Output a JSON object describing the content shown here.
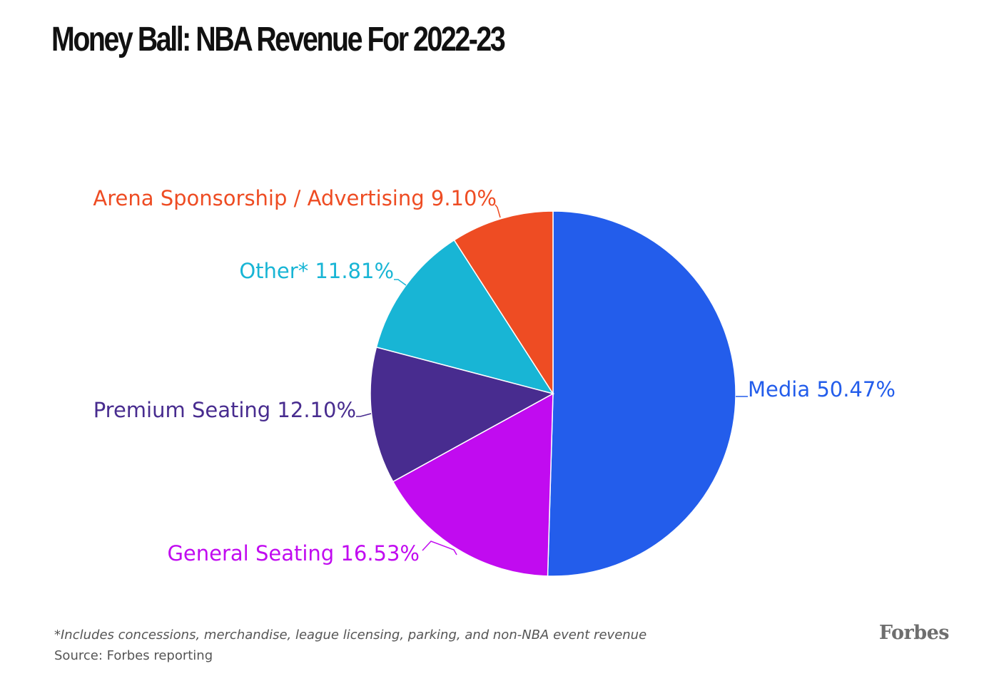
{
  "title": "Money Ball: NBA Revenue For 2022-23",
  "footnote": "*Includes concessions, merchandise, league licensing, parking, and non-NBA event revenue",
  "source": "Source: Forbes reporting",
  "brand": "Forbes",
  "chart_data": {
    "type": "pie",
    "title": "Money Ball: NBA Revenue For 2022-23",
    "unit": "%",
    "slices": [
      {
        "label": "Media 50.47%",
        "name": "Media",
        "value": 50.47,
        "color": "#235DEB"
      },
      {
        "label": "General Seating 16.53%",
        "name": "General Seating",
        "value": 16.53,
        "color": "#C10BF0"
      },
      {
        "label": "Premium Seating 12.10%",
        "name": "Premium Seating",
        "value": 12.1,
        "color": "#482C8F"
      },
      {
        "label": "Other* 11.81%",
        "name": "Other*",
        "value": 11.81,
        "color": "#18B5D5"
      },
      {
        "label": "Arena Sponsorship / Advertising 9.10%",
        "name": "Arena Sponsorship / Advertising",
        "value": 9.1,
        "color": "#EE4C23"
      }
    ],
    "start_angle": "12 o'clock",
    "direction": "clockwise",
    "legend": "none (direct labels)"
  }
}
